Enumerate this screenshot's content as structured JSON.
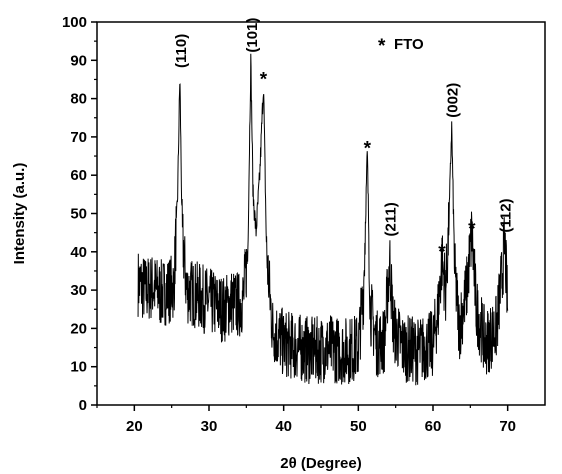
{
  "chart_data": {
    "type": "line",
    "title": "",
    "xlabel": "2θ (Degree)",
    "ylabel": "Intensity (a.u.)",
    "xlim": [
      15,
      75
    ],
    "ylim": [
      0,
      100
    ],
    "x_ticks": [
      20,
      30,
      40,
      50,
      60,
      70
    ],
    "y_ticks": [
      0,
      10,
      20,
      30,
      40,
      50,
      60,
      70,
      80,
      90,
      100
    ],
    "grid": false,
    "legend": "top-right",
    "legend_entries": [
      {
        "symbol": "*",
        "label": "FTO"
      }
    ],
    "series": [
      {
        "color": "#000000",
        "x": [
          20.5,
          21.5,
          22.5,
          23.5,
          24.5,
          25.3,
          25.8,
          26.1,
          26.4,
          27.0,
          28.0,
          29.0,
          30.0,
          31.0,
          32.0,
          33.0,
          34.0,
          34.6,
          35.2,
          35.6,
          35.9,
          36.3,
          36.8,
          37.3,
          37.7,
          38.5,
          40.0,
          42.0,
          44.0,
          46.0,
          48.0,
          50.0,
          50.7,
          51.2,
          51.6,
          52.5,
          53.5,
          54.2,
          54.7,
          56.0,
          58.0,
          60.0,
          60.7,
          61.2,
          61.7,
          62.1,
          62.5,
          62.9,
          63.5,
          64.5,
          65.2,
          65.8,
          67.0,
          68.5,
          69.3,
          69.6,
          70.0
        ],
        "y": [
          32,
          30,
          31,
          29,
          30,
          31,
          55,
          86,
          45,
          30,
          29,
          28,
          27,
          26,
          25,
          27,
          26,
          28,
          40,
          90,
          55,
          45,
          60,
          84,
          40,
          20,
          16,
          15,
          14,
          15,
          14,
          15,
          30,
          66,
          25,
          16,
          17,
          38,
          20,
          15,
          14,
          16,
          25,
          38,
          30,
          45,
          73,
          35,
          20,
          30,
          45,
          25,
          16,
          20,
          35,
          43,
          25
        ]
      }
    ],
    "annotations": [
      {
        "text": "(110)",
        "x": 26.1,
        "y": 88,
        "rotate": true
      },
      {
        "text": "(101)",
        "x": 35.6,
        "y": 92,
        "rotate": true
      },
      {
        "text": "*",
        "x": 37.3,
        "y": 86,
        "rotate": false
      },
      {
        "text": "*",
        "x": 51.2,
        "y": 68,
        "rotate": false
      },
      {
        "text": "(211)",
        "x": 54.2,
        "y": 44,
        "rotate": true
      },
      {
        "text": "*",
        "x": 61.2,
        "y": 41,
        "rotate": false
      },
      {
        "text": "(002)",
        "x": 62.5,
        "y": 75,
        "rotate": true
      },
      {
        "text": "*",
        "x": 65.2,
        "y": 47,
        "rotate": false
      },
      {
        "text": "(112)",
        "x": 69.6,
        "y": 45,
        "rotate": true
      }
    ]
  }
}
